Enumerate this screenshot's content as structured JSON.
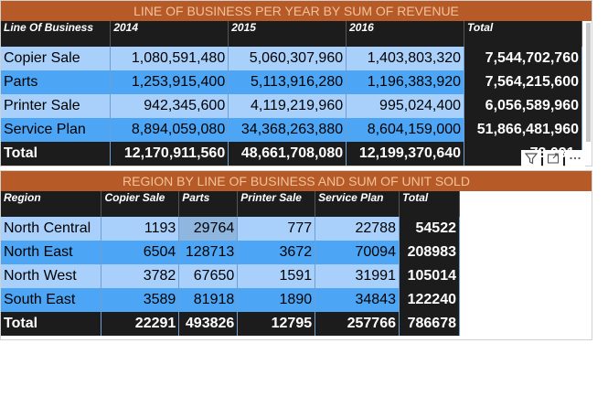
{
  "colors": {
    "title_bar": "#b65a28",
    "title_text": "#f2c29a",
    "header": "#1c1c1c",
    "row_light": "#a8d0fb",
    "row_dark": "#4da6f5"
  },
  "table1": {
    "title": "LINE OF BUSINESS PER YEAR BY SUM OF REVENUE",
    "headers": [
      "Line Of Business",
      "2014",
      "2015",
      "2016",
      "Total"
    ],
    "rows": [
      [
        "Copier Sale",
        "1,080,591,480",
        "5,060,307,960",
        "1,403,803,320",
        "7,544,702,760"
      ],
      [
        "Parts",
        "1,253,915,400",
        "5,113,916,280",
        "1,196,383,920",
        "7,564,215,600"
      ],
      [
        "Printer Sale",
        "942,345,600",
        "4,119,219,960",
        "995,024,400",
        "6,056,589,960"
      ],
      [
        "Service Plan",
        "8,894,059,080",
        "34,368,263,880",
        "8,604,159,000",
        "51,866,481,960"
      ]
    ],
    "total_row": [
      "Total",
      "12,170,911,560",
      "48,661,708,080",
      "12,199,370,640",
      "73,031,"
    ]
  },
  "table2": {
    "title": "REGION BY LINE OF BUSINESS AND SUM OF UNIT SOLD",
    "headers": [
      "Region",
      "Copier Sale",
      "Parts",
      "Printer Sale",
      "Service Plan",
      "Total"
    ],
    "rows": [
      [
        "North Central",
        "1193",
        "29764",
        "777",
        "22788",
        "54522"
      ],
      [
        "North East",
        "6504",
        "128713",
        "3672",
        "70094",
        "208983"
      ],
      [
        "North West",
        "3782",
        "67650",
        "1591",
        "31991",
        "105014"
      ],
      [
        "South East",
        "3589",
        "81918",
        "1890",
        "34843",
        "122240"
      ]
    ],
    "total_row": [
      "Total",
      "22291",
      "493826",
      "12795",
      "257766",
      "786678"
    ]
  },
  "visual_icons": [
    "filter-icon",
    "focus-mode-icon",
    "more-options-icon"
  ]
}
